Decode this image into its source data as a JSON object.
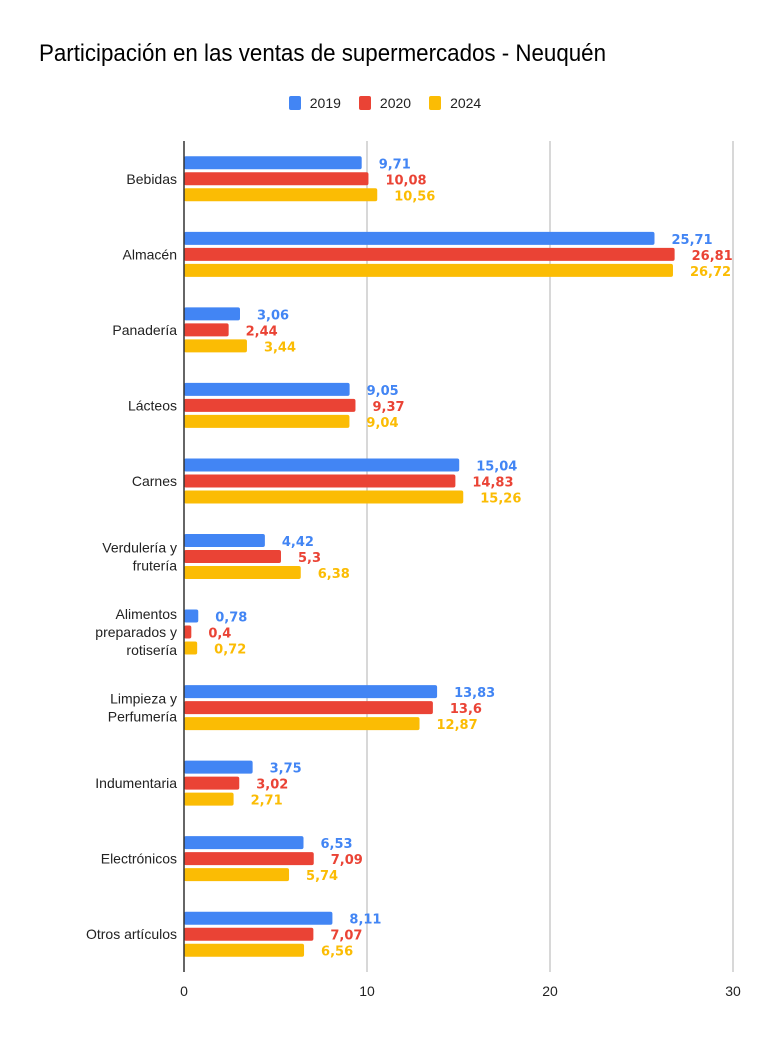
{
  "chart_data": {
    "type": "bar",
    "orientation": "horizontal",
    "title": "Participación en las ventas de supermercados - Neuquén",
    "xlabel": "",
    "ylabel": "",
    "xlim": [
      0,
      30
    ],
    "x_ticks": [
      "0",
      "10",
      "20",
      "30"
    ],
    "grid": true,
    "legend_position": "top",
    "categories": [
      [
        "Bebidas"
      ],
      [
        "Almacén"
      ],
      [
        "Panadería"
      ],
      [
        "Lácteos"
      ],
      [
        "Carnes"
      ],
      [
        "Verdulería y",
        "frutería"
      ],
      [
        "Alimentos",
        "preparados y",
        "rotisería"
      ],
      [
        "Limpieza y",
        "Perfumería"
      ],
      [
        "Indumentaria"
      ],
      [
        "Electrónicos"
      ],
      [
        "Otros artículos"
      ]
    ],
    "series": [
      {
        "name": "2019",
        "color": "#4285F4",
        "values": [
          9.71,
          25.71,
          3.06,
          9.05,
          15.04,
          4.42,
          0.78,
          13.83,
          3.75,
          6.53,
          8.11
        ],
        "labels": [
          "9,71",
          "25,71",
          "3,06",
          "9,05",
          "15,04",
          "4,42",
          "0,78",
          "13,83",
          "3,75",
          "6,53",
          "8,11"
        ]
      },
      {
        "name": "2020",
        "color": "#EA4335",
        "values": [
          10.08,
          26.81,
          2.44,
          9.37,
          14.83,
          5.3,
          0.4,
          13.6,
          3.02,
          7.09,
          7.07
        ],
        "labels": [
          "10,08",
          "26,81",
          "2,44",
          "9,37",
          "14,83",
          "5,3",
          "0,4",
          "13,6",
          "3,02",
          "7,09",
          "7,07"
        ]
      },
      {
        "name": "2024",
        "color": "#FBBC04",
        "values": [
          10.56,
          26.72,
          3.44,
          9.04,
          15.26,
          6.38,
          0.72,
          12.87,
          2.71,
          5.74,
          6.56
        ],
        "labels": [
          "10,56",
          "26,72",
          "3,44",
          "9,04",
          "15,26",
          "6,38",
          "0,72",
          "12,87",
          "2,71",
          "5,74",
          "6,56"
        ]
      }
    ]
  }
}
